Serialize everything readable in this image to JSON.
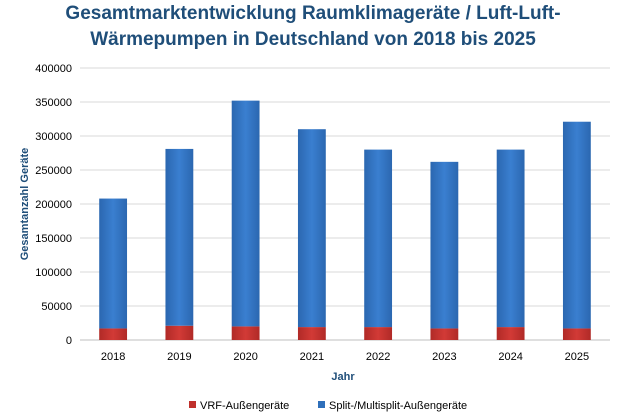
{
  "chart_data": {
    "type": "bar",
    "stacked": true,
    "title": "Gesamtmarktentwicklung Raumklimageräte / Luft-Luft-Wärmepumpen in Deutschland von 2018 bis 2025",
    "title_lines": [
      "Gesamtmarktentwicklung Raumklimageräte / Luft-Luft-",
      "Wärmepumpen in Deutschland von 2018 bis 2025"
    ],
    "xlabel": "Jahr",
    "ylabel": "Gesamtanzahl Geräte",
    "ylim": [
      0,
      400000
    ],
    "yticks": [
      0,
      50000,
      100000,
      150000,
      200000,
      250000,
      300000,
      350000,
      400000
    ],
    "grid": true,
    "legend_position": "bottom",
    "categories": [
      "2018",
      "2019",
      "2020",
      "2021",
      "2022",
      "2023",
      "2024",
      "2025"
    ],
    "series": [
      {
        "name": "VRF-Außengeräte",
        "color": "#c0302c",
        "values": [
          17000,
          21000,
          20000,
          19000,
          19000,
          17000,
          19000,
          17000
        ]
      },
      {
        "name": "Split-/Multisplit-Außengeräte",
        "color": "#2e6fba",
        "values": [
          191000,
          260000,
          332000,
          291000,
          261000,
          245000,
          261000,
          304000
        ]
      }
    ]
  }
}
